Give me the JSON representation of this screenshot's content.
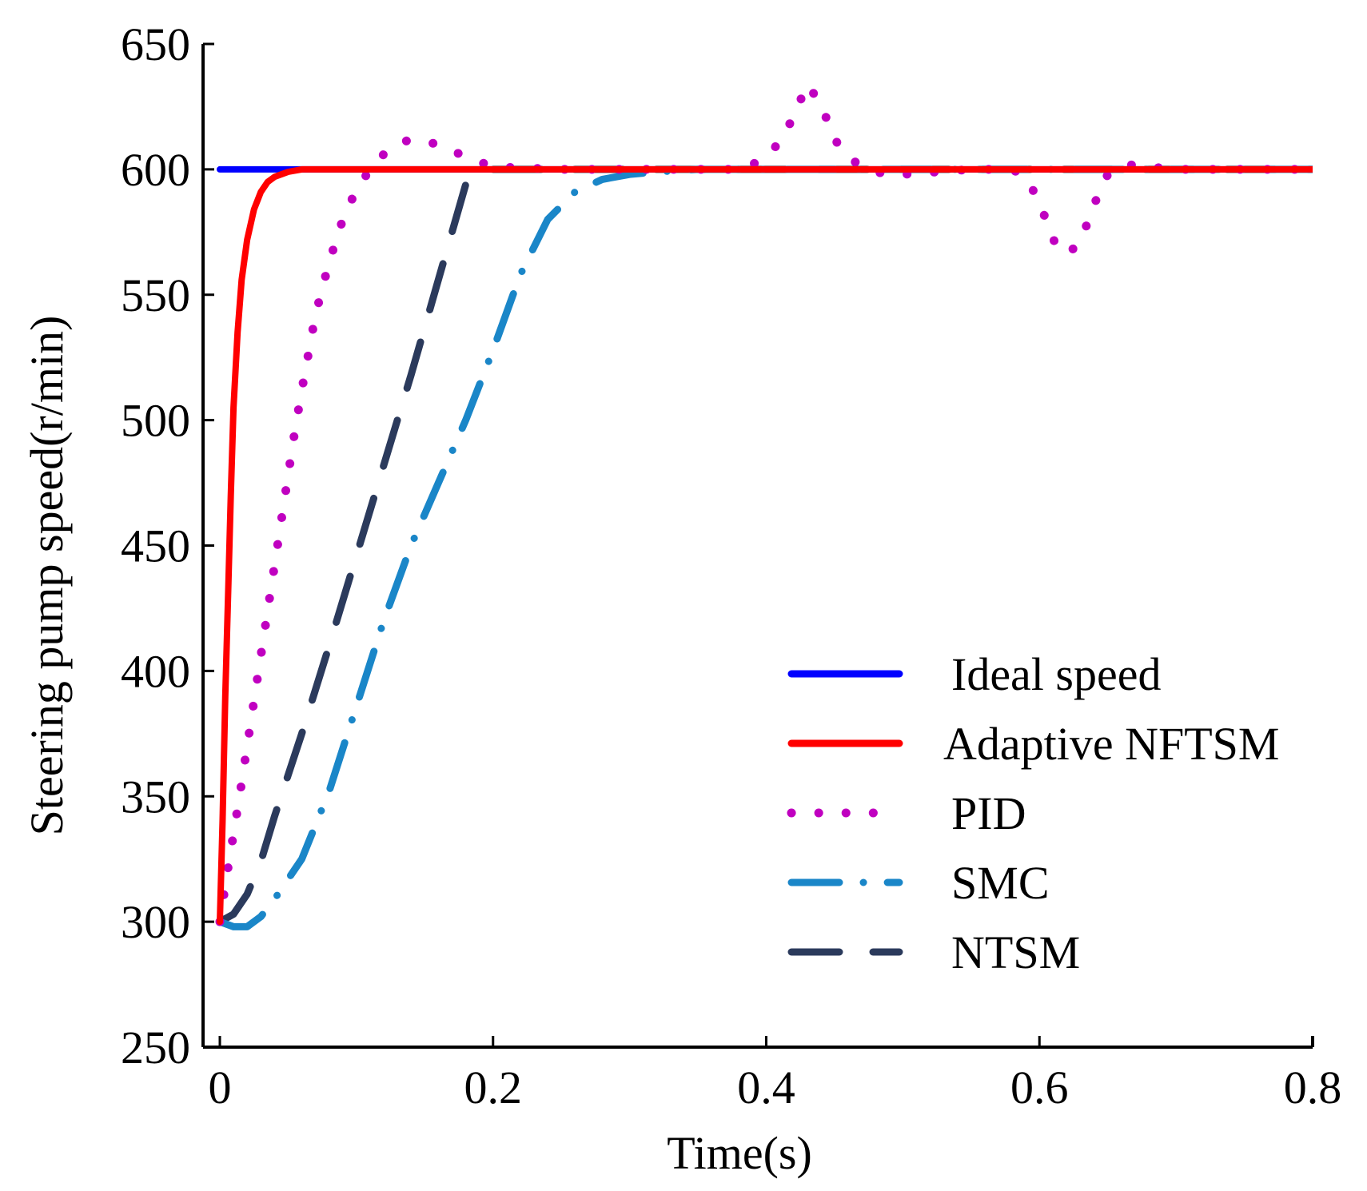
{
  "chart_data": {
    "type": "line",
    "title": "",
    "xlabel": "Time(s)",
    "ylabel": "Steering pump speed(r/min)",
    "xlim": [
      0,
      0.8
    ],
    "ylim": [
      250,
      650
    ],
    "xticks": [
      0,
      0.2,
      0.4,
      0.6,
      0.8
    ],
    "xtick_labels": [
      "0",
      "0.2",
      "0.4",
      "0.6",
      "0.8"
    ],
    "yticks": [
      250,
      300,
      350,
      400,
      450,
      500,
      550,
      600,
      650
    ],
    "ytick_labels": [
      "250",
      "300",
      "350",
      "400",
      "450",
      "500",
      "550",
      "600",
      "650"
    ],
    "grid": false,
    "legend_position": "bottom-right",
    "series": [
      {
        "name": "Ideal speed",
        "color": "#0000ff",
        "style": "solid",
        "x": [
          0,
          0.8
        ],
        "y": [
          600,
          600
        ]
      },
      {
        "name": "Adaptive NFTSM",
        "color": "#ff0000",
        "style": "solid",
        "x": [
          0,
          0.002,
          0.004,
          0.006,
          0.008,
          0.01,
          0.013,
          0.016,
          0.02,
          0.025,
          0.03,
          0.035,
          0.04,
          0.05,
          0.06,
          0.07,
          0.8
        ],
        "y": [
          300,
          340,
          390,
          430,
          470,
          505,
          535,
          556,
          572,
          584,
          591,
          595,
          597,
          599,
          600,
          600,
          600
        ]
      },
      {
        "name": "PID",
        "color": "#c000c0",
        "style": "dotted",
        "x": [
          0,
          0.005,
          0.01,
          0.015,
          0.02,
          0.025,
          0.03,
          0.035,
          0.04,
          0.045,
          0.05,
          0.055,
          0.06,
          0.065,
          0.07,
          0.08,
          0.09,
          0.1,
          0.11,
          0.12,
          0.13,
          0.14,
          0.16,
          0.18,
          0.2,
          0.25,
          0.3,
          0.35,
          0.38,
          0.39,
          0.4,
          0.41,
          0.42,
          0.43,
          0.44,
          0.45,
          0.46,
          0.47,
          0.48,
          0.49,
          0.5,
          0.55,
          0.58,
          0.59,
          0.6,
          0.61,
          0.62,
          0.63,
          0.64,
          0.65,
          0.66,
          0.67,
          0.68,
          0.7,
          0.75,
          0.8
        ],
        "y": [
          300,
          318,
          335,
          352,
          370,
          388,
          406,
          424,
          442,
          460,
          478,
          496,
          512,
          527,
          542,
          563,
          580,
          592,
          600,
          606,
          610,
          612,
          610,
          605,
          601,
          600,
          600,
          600,
          600,
          602,
          605,
          611,
          621,
          634,
          626,
          612,
          605,
          601,
          599,
          598,
          598,
          600,
          600,
          597,
          587,
          572,
          566,
          571,
          586,
          598,
          601,
          602,
          601,
          600,
          600,
          600
        ]
      },
      {
        "name": "SMC",
        "color": "#1a86c8",
        "style": "dashdot",
        "x": [
          0,
          0.01,
          0.02,
          0.03,
          0.04,
          0.06,
          0.08,
          0.1,
          0.12,
          0.14,
          0.16,
          0.18,
          0.2,
          0.22,
          0.24,
          0.26,
          0.28,
          0.3,
          0.32,
          0.35,
          0.4,
          0.45,
          0.8
        ],
        "y": [
          300,
          298,
          298,
          302,
          309,
          325,
          352,
          386,
          420,
          450,
          475,
          500,
          528,
          558,
          580,
          591,
          596,
          598,
          599,
          600,
          600,
          600,
          600
        ]
      },
      {
        "name": "NTSM",
        "color": "#2b3a5c",
        "style": "dashed",
        "x": [
          0,
          0.01,
          0.02,
          0.03,
          0.04,
          0.06,
          0.08,
          0.1,
          0.12,
          0.14,
          0.16,
          0.18,
          0.19,
          0.2,
          0.22,
          0.8
        ],
        "y": [
          300,
          303,
          311,
          324,
          342,
          375,
          410,
          446,
          482,
          518,
          556,
          594,
          599,
          600,
          600,
          600
        ]
      }
    ]
  }
}
